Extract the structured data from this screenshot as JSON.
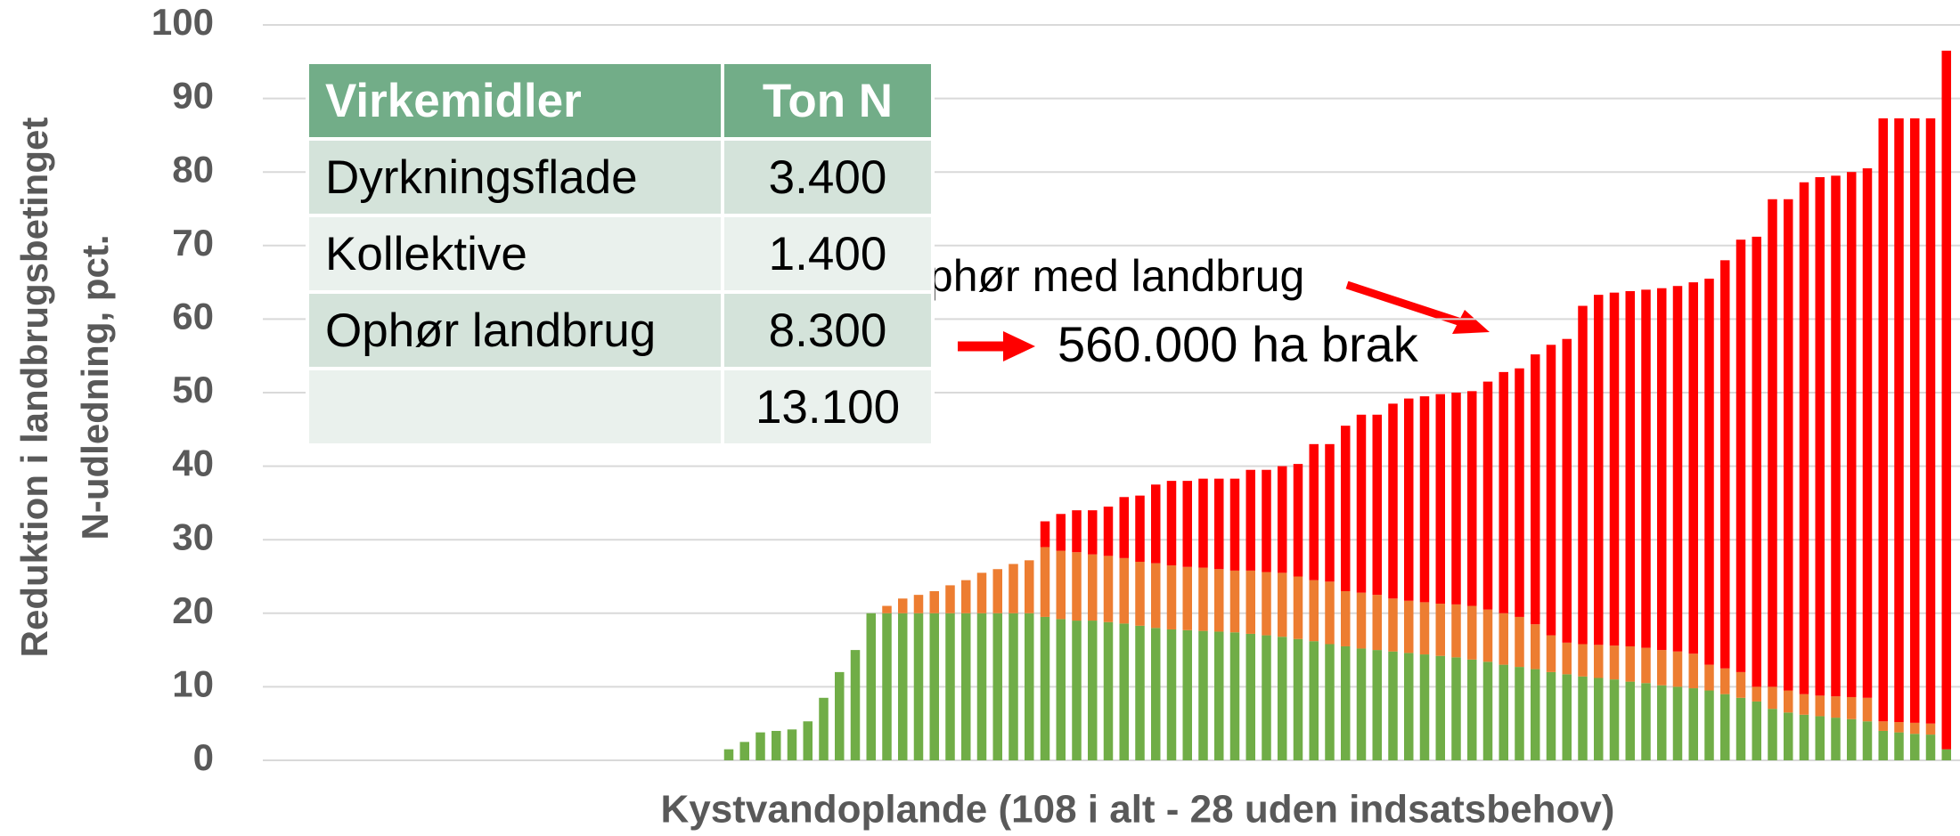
{
  "chart_data": {
    "type": "stacked_bar",
    "ylabel": [
      "Reduktion i landbrugsbetinget",
      "N-udledning, pct."
    ],
    "xlabel": "Kystvandoplande (108 i alt - 28 uden indsatsbehov)",
    "annotations": [
      "Ophør med landbrug",
      "560.000 ha brak"
    ],
    "categories": [
      null,
      null,
      null,
      null,
      null,
      null,
      null,
      null,
      null,
      null,
      null,
      null,
      null,
      null,
      null,
      null,
      null,
      null,
      null,
      null,
      null,
      null,
      null,
      null,
      null,
      null,
      null,
      null,
      null,
      null,
      null,
      null,
      null,
      null,
      null,
      null,
      null,
      null,
      null,
      null,
      null,
      null,
      null,
      null,
      null,
      null,
      null,
      null,
      null,
      null,
      null,
      null,
      null,
      null,
      null,
      null,
      null,
      null,
      null,
      null,
      null,
      null,
      null,
      null,
      null,
      null,
      null,
      null,
      null,
      null,
      null,
      null,
      null,
      null,
      null,
      null,
      null,
      null,
      null,
      null,
      null,
      null,
      null,
      null,
      null,
      null,
      null,
      null,
      null,
      null,
      null,
      null,
      null,
      null,
      null,
      null,
      null,
      null,
      null,
      null,
      null,
      null,
      null,
      null,
      null,
      null,
      null,
      null
    ],
    "series": [
      {
        "color": "#70ad47",
        "values": [
          0,
          0,
          0,
          0,
          0,
          0,
          0,
          0,
          0,
          0,
          0,
          0,
          0,
          0,
          0,
          0,
          0,
          0,
          0,
          0,
          0,
          0,
          0,
          0,
          0,
          0,
          0,
          0,
          0,
          0,
          1.5,
          2.5,
          3.8,
          4,
          4.2,
          5.3,
          8.5,
          12,
          15,
          20,
          20,
          20,
          20,
          20,
          20,
          20,
          20,
          20,
          20,
          20,
          19.5,
          19.2,
          19,
          19,
          18.8,
          18.6,
          18.3,
          18,
          17.8,
          17.7,
          17.6,
          17.5,
          17.4,
          17.2,
          17,
          16.8,
          16.5,
          16.2,
          15.8,
          15.5,
          15.2,
          15,
          14.8,
          14.6,
          14.4,
          14.2,
          14,
          13.7,
          13.4,
          13,
          12.7,
          12.4,
          12,
          11.7,
          11.4,
          11.2,
          11,
          10.7,
          10.5,
          10.2,
          10,
          9.8,
          9.5,
          9,
          8.5,
          8,
          7,
          6.5,
          6.2,
          6,
          5.8,
          5.6,
          5.3,
          4,
          3.8,
          3.6,
          3.5,
          1.5
        ]
      },
      {
        "color": "#ed7d31",
        "values": [
          0,
          0,
          0,
          0,
          0,
          0,
          0,
          0,
          0,
          0,
          0,
          0,
          0,
          0,
          0,
          0,
          0,
          0,
          0,
          0,
          0,
          0,
          0,
          0,
          0,
          0,
          0,
          0,
          0,
          0,
          0,
          0,
          0,
          0,
          0,
          0,
          0,
          0,
          0,
          0,
          1,
          2,
          2.5,
          3,
          3.8,
          4.5,
          5.5,
          6,
          6.7,
          7.2,
          9.5,
          9.3,
          9.3,
          9,
          9,
          8.9,
          8.7,
          8.8,
          8.7,
          8.6,
          8.6,
          8.5,
          8.4,
          8.6,
          8.6,
          8.7,
          8.5,
          8.3,
          8.5,
          7.5,
          7.6,
          7.5,
          7.2,
          7.1,
          7.1,
          7.1,
          7.2,
          7.3,
          7.1,
          7,
          6.8,
          6.1,
          5,
          4.3,
          4.4,
          4.5,
          4.6,
          4.8,
          4.8,
          4.8,
          4.8,
          4.7,
          3.5,
          3.5,
          3.5,
          2,
          3,
          3,
          2.8,
          2.8,
          2.9,
          3,
          3.2,
          1.3,
          1.4,
          1.5,
          1.5,
          0
        ]
      },
      {
        "color": "#ff0000",
        "values": [
          0,
          0,
          0,
          0,
          0,
          0,
          0,
          0,
          0,
          0,
          0,
          0,
          0,
          0,
          0,
          0,
          0,
          0,
          0,
          0,
          0,
          0,
          0,
          0,
          0,
          0,
          0,
          0,
          0,
          0,
          0,
          0,
          0,
          0,
          0,
          0,
          0,
          0,
          0,
          0,
          0,
          0,
          0,
          0,
          0,
          0,
          0,
          0,
          0,
          0,
          3.5,
          5,
          5.7,
          6,
          6.7,
          8.3,
          9,
          10.7,
          11.5,
          11.7,
          12.1,
          12.3,
          12.5,
          13.7,
          13.9,
          14.5,
          15.3,
          18.5,
          18.7,
          22.5,
          24.2,
          24.5,
          26.5,
          27.5,
          28,
          28.5,
          28.8,
          29.2,
          31,
          32.8,
          33.8,
          36.7,
          39.5,
          41.3,
          46,
          47.6,
          48,
          48.3,
          48.7,
          49.2,
          49.7,
          50.5,
          52.5,
          55.5,
          58.8,
          61.2,
          66.3,
          66.8,
          69.6,
          70.5,
          70.8,
          71.4,
          72,
          82,
          82.1,
          82.2,
          82.3,
          95
        ]
      }
    ],
    "ylim": [
      0,
      100
    ],
    "yticks": [
      0,
      10,
      20,
      30,
      40,
      50,
      60,
      70,
      80,
      90,
      100
    ],
    "grid": true
  },
  "table": {
    "header": [
      "Virkemidler",
      "Ton N"
    ],
    "rows": [
      [
        "Dyrkningsflade",
        "3.400"
      ],
      [
        "Kollektive",
        "1.400"
      ],
      [
        "Ophør landbrug",
        "8.300"
      ],
      [
        null,
        "13.100"
      ]
    ]
  }
}
